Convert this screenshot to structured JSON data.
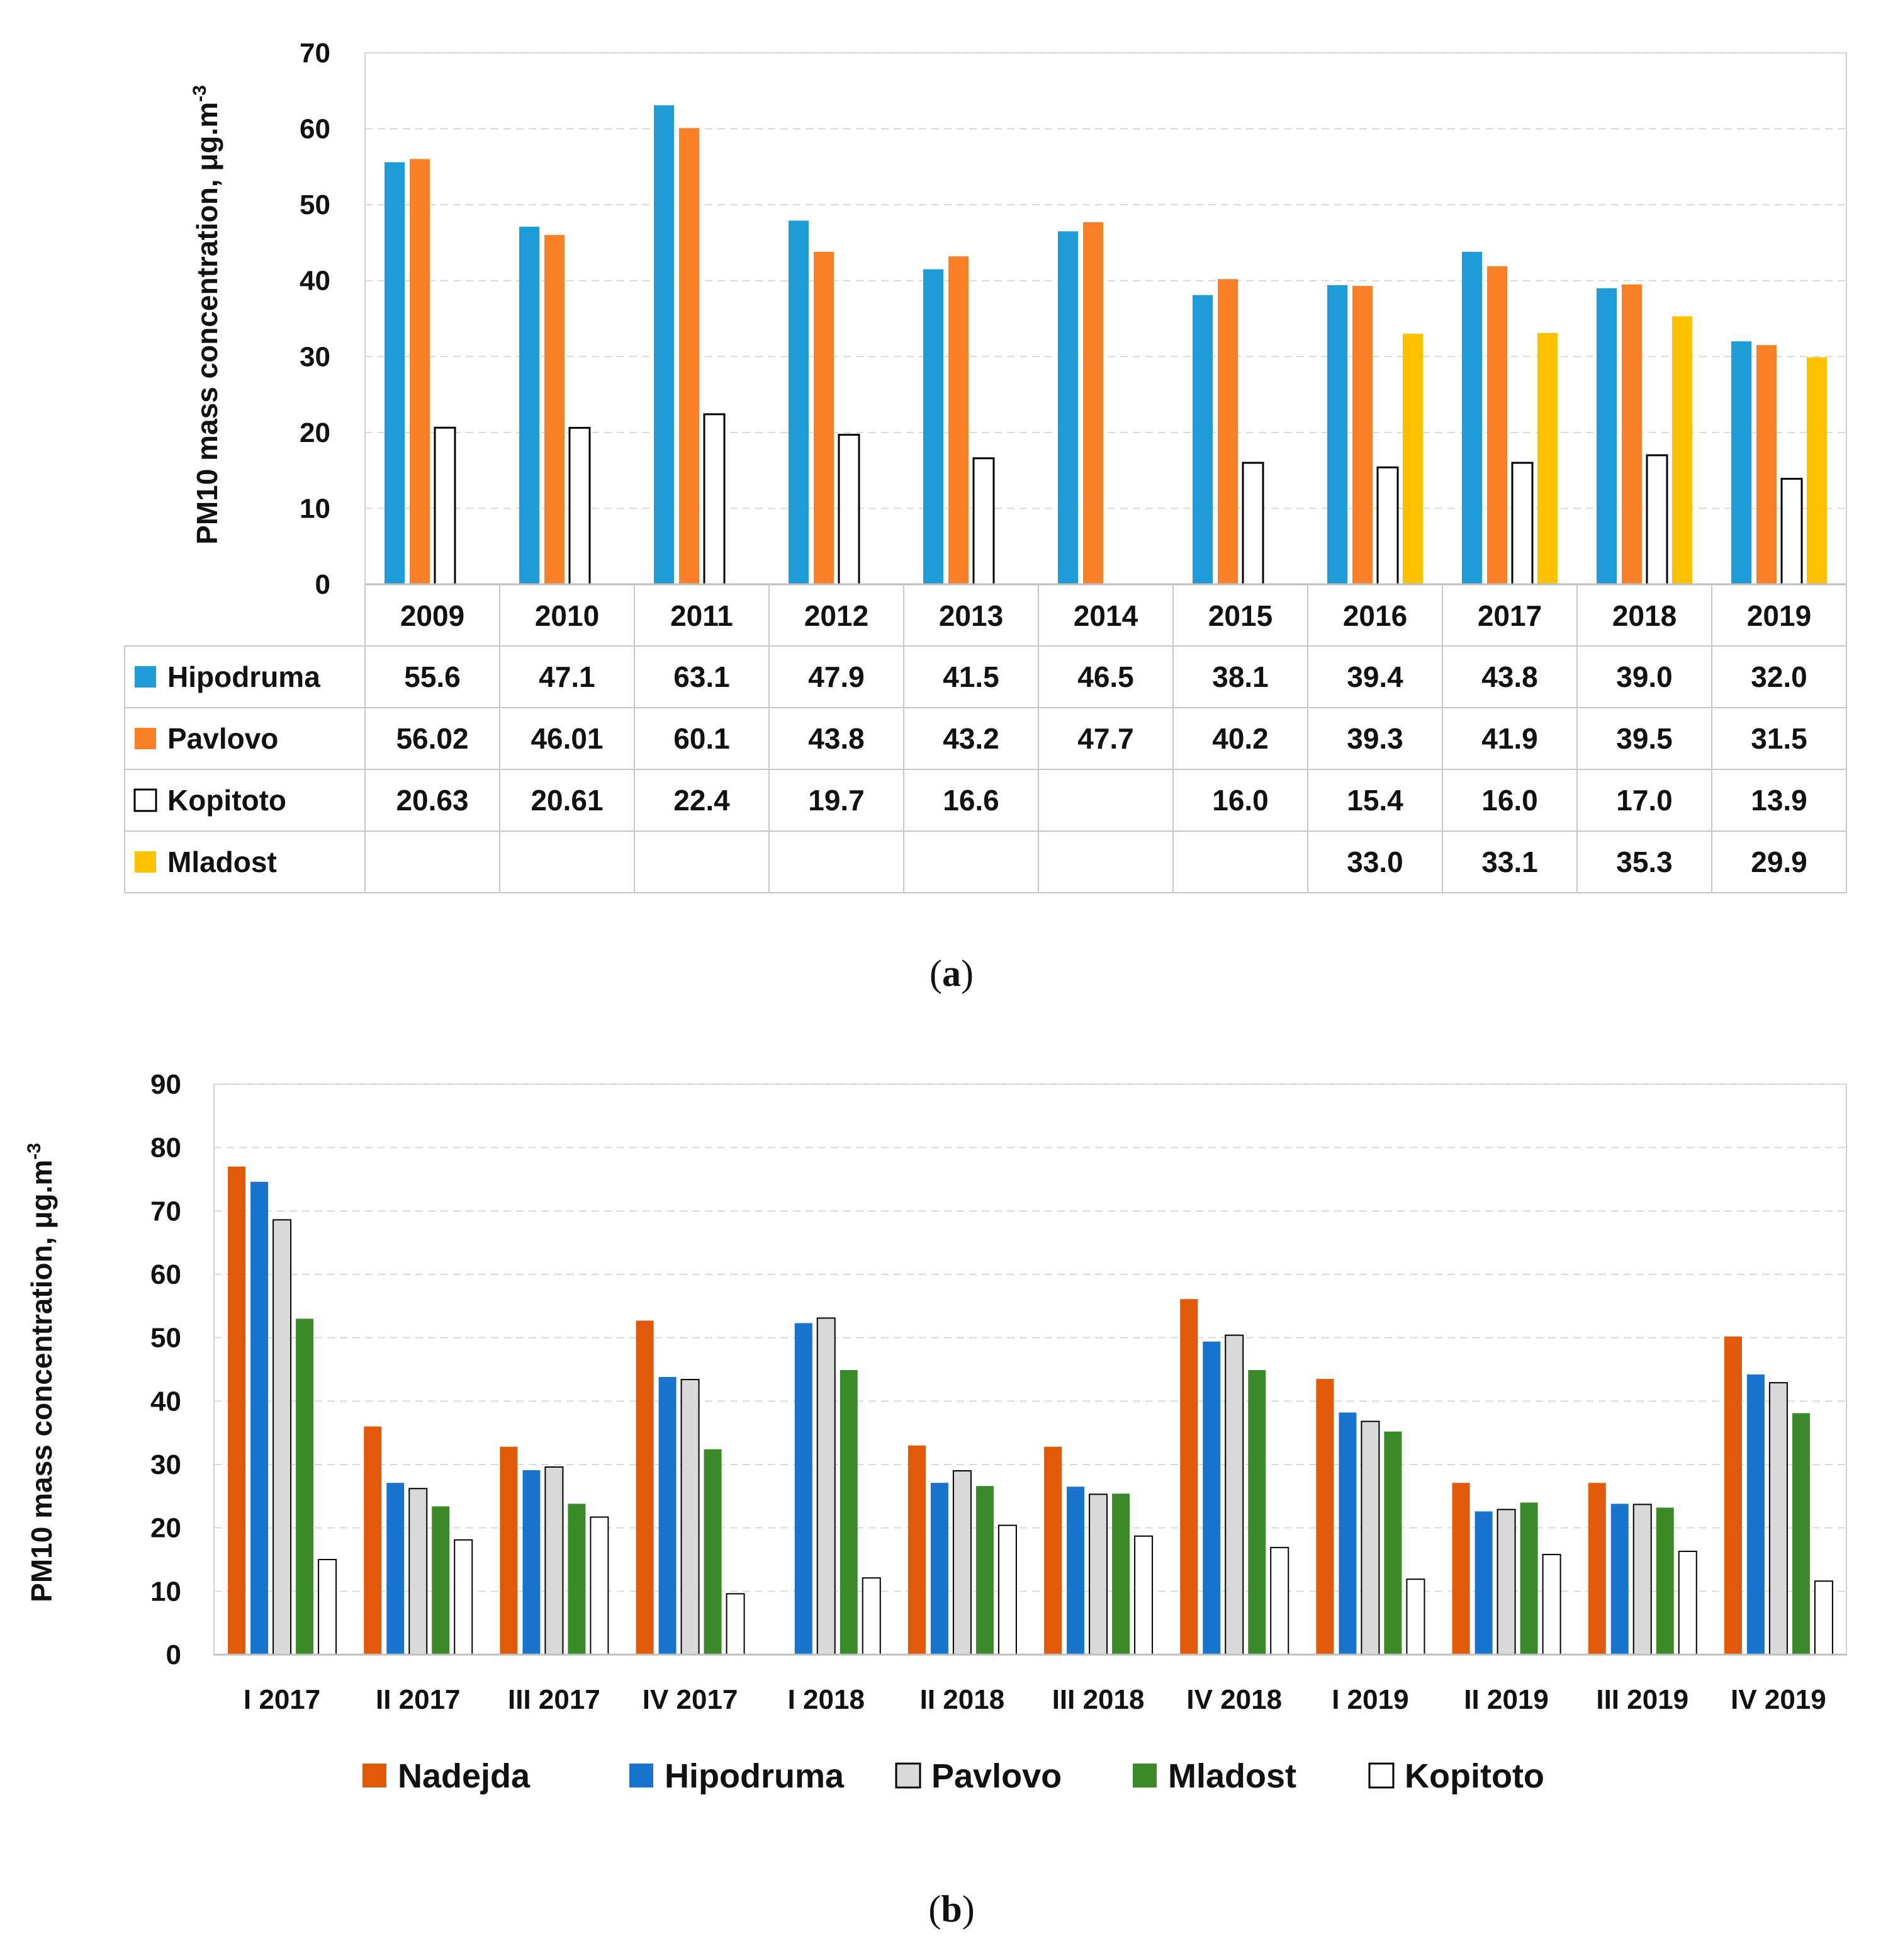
{
  "chart_data": [
    {
      "type": "bar",
      "panel_label": "a",
      "ylabel": "PM10 mass concentration, μg.m",
      "ylabel_sup": "-3",
      "ylim": [
        0,
        70
      ],
      "yticks": [
        0,
        10,
        20,
        30,
        40,
        50,
        60,
        70
      ],
      "grid": true,
      "legend": "data-table",
      "categories": [
        "2009",
        "2010",
        "2011",
        "2012",
        "2013",
        "2014",
        "2015",
        "2016",
        "2017",
        "2018",
        "2019"
      ],
      "series": [
        {
          "name": "Hipodruma",
          "color": "#1f9bd7",
          "values": [
            55.6,
            47.1,
            63.1,
            47.9,
            41.5,
            46.5,
            38.1,
            39.4,
            43.8,
            39.0,
            32.0
          ],
          "labels": [
            "55.6",
            "47.1",
            "63.1",
            "47.9",
            "41.5",
            "46.5",
            "38.1",
            "39.4",
            "43.8",
            "39.0",
            "32.0"
          ]
        },
        {
          "name": "Pavlovo",
          "color": "#f98027",
          "values": [
            56.02,
            46.01,
            60.1,
            43.8,
            43.2,
            47.7,
            40.2,
            39.3,
            41.9,
            39.5,
            31.5
          ],
          "labels": [
            "56.02",
            "46.01",
            "60.1",
            "43.8",
            "43.2",
            "47.7",
            "40.2",
            "39.3",
            "41.9",
            "39.5",
            "31.5"
          ]
        },
        {
          "name": "Kopitoto",
          "color": "#ffffff",
          "values": [
            20.63,
            20.61,
            22.4,
            19.7,
            16.6,
            null,
            16.0,
            15.4,
            16.0,
            17.0,
            13.9
          ],
          "labels": [
            "20.63",
            "20.61",
            "22.4",
            "19.7",
            "16.6",
            "",
            "16.0",
            "15.4",
            "16.0",
            "17.0",
            "13.9"
          ]
        },
        {
          "name": "Mladost",
          "color": "#ffc000",
          "values": [
            null,
            null,
            null,
            null,
            null,
            null,
            null,
            33.0,
            33.1,
            35.3,
            29.9
          ],
          "labels": [
            "",
            "",
            "",
            "",
            "",
            "",
            "",
            "33.0",
            "33.1",
            "35.3",
            "29.9"
          ]
        }
      ]
    },
    {
      "type": "bar",
      "panel_label": "b",
      "ylabel": "PM10 mass concentration, μg.m",
      "ylabel_sup": "-3",
      "ylim": [
        0,
        90
      ],
      "yticks": [
        0,
        10,
        20,
        30,
        40,
        50,
        60,
        70,
        80,
        90
      ],
      "grid": true,
      "legend": "bottom",
      "categories": [
        "I 2017",
        "II 2017",
        "III 2017",
        "IV 2017",
        "I 2018",
        "II 2018",
        "III 2018",
        "IV 2018",
        "I 2019",
        "II 2019",
        "III 2019",
        "IV 2019"
      ],
      "series": [
        {
          "name": "Nadejda",
          "color": "#e05a0a",
          "values": [
            77.0,
            36.0,
            32.8,
            52.7,
            null,
            33.0,
            32.8,
            56.1,
            43.5,
            27.1,
            27.1,
            50.2
          ]
        },
        {
          "name": "Hipodruma",
          "color": "#1874cd",
          "values": [
            74.6,
            27.1,
            29.1,
            43.8,
            52.3,
            27.1,
            26.5,
            49.4,
            38.2,
            22.6,
            23.8,
            44.2
          ]
        },
        {
          "name": "Pavlovo",
          "color": "#d9d9d9",
          "values": [
            68.6,
            26.2,
            29.6,
            43.4,
            53.1,
            29.0,
            25.3,
            50.4,
            36.8,
            22.9,
            23.7,
            42.9
          ]
        },
        {
          "name": "Mladost",
          "color": "#3a8a2a",
          "values": [
            53.0,
            23.4,
            23.8,
            32.4,
            44.9,
            26.6,
            25.4,
            44.9,
            35.2,
            24.0,
            23.2,
            38.1
          ]
        },
        {
          "name": "Kopitoto",
          "color": "#ffffff",
          "values": [
            15.0,
            18.1,
            21.7,
            9.6,
            12.1,
            20.4,
            18.7,
            16.9,
            11.9,
            15.8,
            16.3,
            11.6
          ]
        }
      ]
    }
  ]
}
